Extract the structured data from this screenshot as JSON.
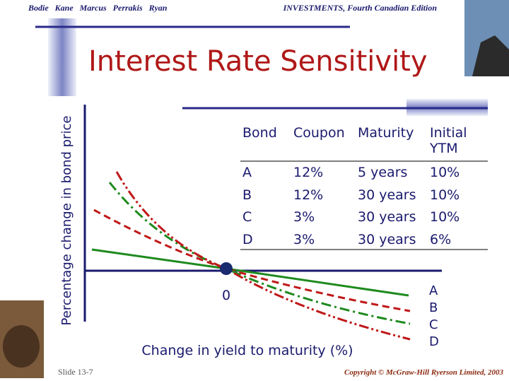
{
  "header": {
    "authors": "Bodie   Kane   Marcus   Perrakis   Ryan",
    "edition": "INVESTMENTS, Fourth Canadian Edition"
  },
  "title": "Interest Rate Sensitivity",
  "table": {
    "headers": [
      "Bond",
      "Coupon",
      "Maturity",
      "Initial YTM"
    ],
    "rows": [
      [
        "A",
        "12%",
        "5 years",
        "10%"
      ],
      [
        "B",
        "12%",
        "30 years",
        "10%"
      ],
      [
        "C",
        "3%",
        "30 years",
        "10%"
      ],
      [
        "D",
        "3%",
        "30 years",
        "6%"
      ]
    ]
  },
  "diagram": {
    "y_label": "Percentage change in bond price",
    "x_label": "Change in yield to maturity (%)",
    "origin_label": "0",
    "curve_labels": [
      "A",
      "B",
      "C",
      "D"
    ]
  },
  "footer": {
    "slide": "Slide 13-7",
    "copyright": "Copyright © McGraw-Hill Ryerson Limited, 2003"
  }
}
